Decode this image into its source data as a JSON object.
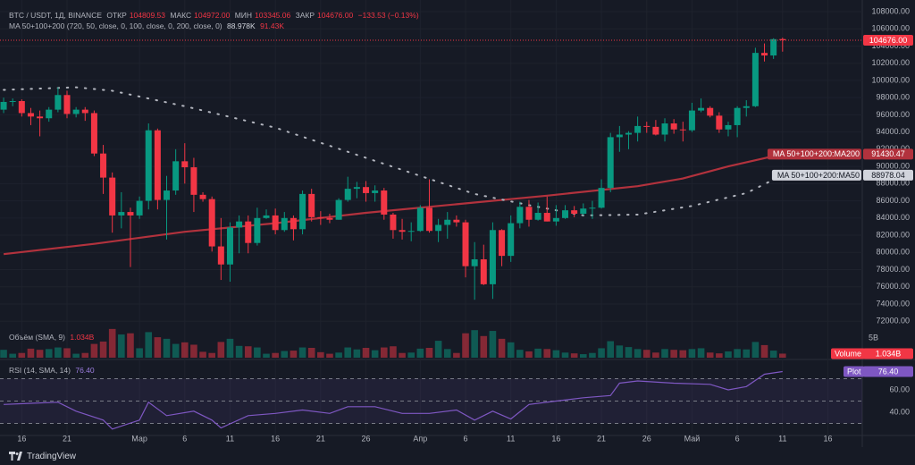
{
  "legend": {
    "symbol": "BTC / USDT, 1Д, BINANCE",
    "open_label": "ОТКР",
    "open": "104809.53",
    "high_label": "МАКС",
    "high": "104972.00",
    "low_label": "МИН",
    "low": "103345.06",
    "close_label": "ЗАКР",
    "close": "104676.00",
    "change": "−133.53 (−0.13%)",
    "ma": "MA 50+100+200 (720, 50, close, 0, 100, close, 0, 200, close, 0)",
    "ma50": "88.978K",
    "ma200": "91.43K"
  },
  "footer": "TradingView",
  "chart_data": [
    {
      "type": "candlestick",
      "xlim": [
        -0.4,
        94.8
      ],
      "ylim": [
        71400,
        109350
      ],
      "xticks": [
        {
          "value": 2,
          "label": "16"
        },
        {
          "value": 7,
          "label": "21"
        },
        {
          "value": 15,
          "label": "Мар"
        },
        {
          "value": 20,
          "label": "6"
        },
        {
          "value": 25,
          "label": "11"
        },
        {
          "value": 30,
          "label": "16"
        },
        {
          "value": 35,
          "label": "21"
        },
        {
          "value": 40,
          "label": "26"
        },
        {
          "value": 46,
          "label": "Апр"
        },
        {
          "value": 51,
          "label": "6"
        },
        {
          "value": 56,
          "label": "11"
        },
        {
          "value": 61,
          "label": "16"
        },
        {
          "value": 66,
          "label": "21"
        },
        {
          "value": 71,
          "label": "26"
        },
        {
          "value": 76,
          "label": "Май"
        },
        {
          "value": 81,
          "label": "6"
        },
        {
          "value": 86,
          "label": "11"
        },
        {
          "value": 91,
          "label": "16"
        }
      ],
      "yticks": [
        {
          "value": 72000,
          "label": "72000.00"
        },
        {
          "value": 74000,
          "label": "74000.00"
        },
        {
          "value": 76000,
          "label": "76000.00"
        },
        {
          "value": 78000,
          "label": "78000.00"
        },
        {
          "value": 80000,
          "label": "80000.00"
        },
        {
          "value": 82000,
          "label": "82000.00"
        },
        {
          "value": 84000,
          "label": "84000.00"
        },
        {
          "value": 86000,
          "label": "86000.00"
        },
        {
          "value": 88000,
          "label": "88000.00"
        },
        {
          "value": 90000,
          "label": "90000.00"
        },
        {
          "value": 92000,
          "label": "92000.00"
        },
        {
          "value": 94000,
          "label": "94000.00"
        },
        {
          "value": 96000,
          "label": "96000.00"
        },
        {
          "value": 98000,
          "label": "98000.00"
        },
        {
          "value": 100000,
          "label": "100000.00"
        },
        {
          "value": 102000,
          "label": "102000.00"
        },
        {
          "value": 104000,
          "label": "104000.00"
        },
        {
          "value": 106000,
          "label": "106000.00"
        },
        {
          "value": 108000,
          "label": "108000.00"
        }
      ],
      "grid": true,
      "up_color": "#089981",
      "down_color": "#f23645",
      "ohlc": [
        [
          96600,
          98000,
          96200,
          97500
        ],
        [
          97500,
          97900,
          97000,
          97600
        ],
        [
          97600,
          97800,
          95800,
          96200
        ],
        [
          96200,
          96800,
          94800,
          95800
        ],
        [
          95800,
          96500,
          93500,
          95600
        ],
        [
          95600,
          96900,
          95200,
          96600
        ],
        [
          96600,
          99200,
          96300,
          98300
        ],
        [
          98300,
          98800,
          95600,
          96100
        ],
        [
          96100,
          96900,
          95700,
          96600
        ],
        [
          96600,
          96900,
          95300,
          96200
        ],
        [
          96200,
          96500,
          91200,
          91500
        ],
        [
          91500,
          92500,
          86800,
          88700
        ],
        [
          88700,
          89300,
          82300,
          84300
        ],
        [
          84300,
          87000,
          82800,
          84700
        ],
        [
          84700,
          85200,
          78300,
          84300
        ],
        [
          84300,
          86500,
          83900,
          86000
        ],
        [
          86000,
          95000,
          85000,
          94200
        ],
        [
          94200,
          94400,
          85000,
          86100
        ],
        [
          86100,
          88900,
          81500,
          87200
        ],
        [
          87200,
          92000,
          86700,
          90600
        ],
        [
          90600,
          92700,
          88000,
          89900
        ],
        [
          89900,
          91000,
          84700,
          86700
        ],
        [
          86700,
          87000,
          85900,
          86200
        ],
        [
          86200,
          86500,
          80100,
          80700
        ],
        [
          80700,
          84000,
          76800,
          78600
        ],
        [
          78600,
          83500,
          76600,
          82900
        ],
        [
          82900,
          84300,
          79900,
          83600
        ],
        [
          83600,
          84300,
          79900,
          81100
        ],
        [
          81100,
          85200,
          80800,
          84000
        ],
        [
          84000,
          85000,
          83900,
          84300
        ],
        [
          84300,
          85100,
          82100,
          82600
        ],
        [
          82600,
          84700,
          82400,
          84000
        ],
        [
          84000,
          84300,
          81400,
          82700
        ],
        [
          82700,
          87200,
          82100,
          86800
        ],
        [
          86800,
          87400,
          83600,
          84100
        ],
        [
          84100,
          84800,
          83200,
          84000
        ],
        [
          84000,
          84500,
          83400,
          83800
        ],
        [
          83800,
          86300,
          83800,
          86100
        ],
        [
          86100,
          88800,
          85900,
          87400
        ],
        [
          87400,
          88200,
          86300,
          87600
        ],
        [
          87600,
          88300,
          85900,
          86900
        ],
        [
          86900,
          87800,
          85900,
          87200
        ],
        [
          87200,
          87500,
          83800,
          84400
        ],
        [
          84400,
          84600,
          81600,
          82600
        ],
        [
          82600,
          83900,
          81500,
          82400
        ],
        [
          82400,
          83500,
          81300,
          82500
        ],
        [
          82500,
          85500,
          82400,
          85200
        ],
        [
          85200,
          88500,
          82300,
          82500
        ],
        [
          82500,
          83900,
          81200,
          83200
        ],
        [
          83200,
          84700,
          81600,
          83800
        ],
        [
          83800,
          84300,
          83000,
          83500
        ],
        [
          83500,
          83800,
          77100,
          78400
        ],
        [
          78400,
          81200,
          74500,
          79200
        ],
        [
          79200,
          80900,
          76200,
          76300
        ],
        [
          76300,
          83500,
          74600,
          82600
        ],
        [
          82600,
          82700,
          78400,
          79600
        ],
        [
          79600,
          84300,
          78900,
          83400
        ],
        [
          83400,
          85900,
          82800,
          85300
        ],
        [
          85300,
          86100,
          83000,
          83800
        ],
        [
          83800,
          85800,
          83700,
          84600
        ],
        [
          84600,
          86500,
          83600,
          83600
        ],
        [
          83600,
          85500,
          83100,
          84000
        ],
        [
          84000,
          85500,
          83900,
          84900
        ],
        [
          84900,
          85400,
          84100,
          84500
        ],
        [
          84500,
          85700,
          84300,
          85100
        ],
        [
          85100,
          86000,
          83900,
          85200
        ],
        [
          85200,
          88500,
          85100,
          87500
        ],
        [
          87500,
          93900,
          87000,
          93400
        ],
        [
          93400,
          94700,
          91700,
          93700
        ],
        [
          93700,
          94100,
          92000,
          93900
        ],
        [
          93900,
          95800,
          92900,
          94700
        ],
        [
          94700,
          95200,
          93900,
          94600
        ],
        [
          94600,
          95400,
          93600,
          93700
        ],
        [
          93700,
          95600,
          92900,
          95000
        ],
        [
          95000,
          95500,
          93800,
          94300
        ],
        [
          94300,
          95200,
          92900,
          94200
        ],
        [
          94200,
          97400,
          94000,
          96500
        ],
        [
          96500,
          97900,
          96300,
          96800
        ],
        [
          96800,
          97000,
          95700,
          95900
        ],
        [
          95900,
          96300,
          93900,
          94300
        ],
        [
          94300,
          95200,
          93500,
          94800
        ],
        [
          94800,
          97000,
          93400,
          96800
        ],
        [
          96800,
          97700,
          95800,
          97000
        ],
        [
          97000,
          103800,
          96900,
          103200
        ],
        [
          103200,
          104300,
          102200,
          102900
        ],
        [
          102900,
          104900,
          102500,
          104800
        ],
        [
          104809.53,
          104972,
          103345.06,
          104676
        ]
      ],
      "last_price": {
        "value": 104676,
        "label": "104676.00"
      },
      "series": [
        {
          "name": "MA 50+100+200:MA200",
          "color": "#b2323d",
          "style": "solid",
          "x": [
            0,
            10,
            20,
            30,
            40,
            50,
            60,
            70,
            75,
            80,
            86
          ],
          "values": [
            79800,
            81000,
            82400,
            83400,
            84600,
            85600,
            86600,
            87700,
            88600,
            90000,
            91430.47
          ],
          "last_label": "91430.47"
        },
        {
          "name": "MA 50+100+200:MA50",
          "color": "#b2b5be",
          "style": "dotted",
          "x": [
            0,
            8,
            12,
            20,
            30,
            40,
            46,
            52,
            58,
            64,
            70,
            76,
            82,
            86
          ],
          "values": [
            98900,
            99200,
            98800,
            97000,
            94500,
            91000,
            88900,
            86800,
            85500,
            84300,
            84400,
            85400,
            86900,
            88978.04
          ],
          "last_label": "88978.04"
        }
      ]
    },
    {
      "type": "bar",
      "title": "Объём (SMA, 9)",
      "tag_name": "Volume",
      "last_label": "1.034B",
      "ylim": [
        0,
        7.95
      ],
      "yticks": [
        {
          "value": 5,
          "label": "5B"
        }
      ],
      "values": [
        2.0,
        1.0,
        1.2,
        2.3,
        2.0,
        2.2,
        2.6,
        2.4,
        1.0,
        1.2,
        3.5,
        4.1,
        7.3,
        5.9,
        6.2,
        2.4,
        6.5,
        5.2,
        4.8,
        3.5,
        3.9,
        3.3,
        1.5,
        1.2,
        4.0,
        4.8,
        3.0,
        2.9,
        2.6,
        1.0,
        1.2,
        1.7,
        1.8,
        2.6,
        2.5,
        1.4,
        1.0,
        1.3,
        2.6,
        2.1,
        2.5,
        1.9,
        2.6,
        2.9,
        1.2,
        1.3,
        2.3,
        2.5,
        4.3,
        2.2,
        1.2,
        6.2,
        7.0,
        5.5,
        6.8,
        4.8,
        3.9,
        2.0,
        1.6,
        2.3,
        2.2,
        1.9,
        1.3,
        1.1,
        0.9,
        1.2,
        2.4,
        4.2,
        3.1,
        2.7,
        2.2,
        2.0,
        1.3,
        2.2,
        2.0,
        1.9,
        2.2,
        2.4,
        1.3,
        1.1,
        1.6,
        2.2,
        2.1,
        4.0,
        3.2,
        1.8,
        1.034
      ]
    },
    {
      "type": "line",
      "title": "RSI (14, SMA, 14)",
      "tag_name": "Plot",
      "last_label": "76.40",
      "color": "#7e57c2",
      "ylim": [
        20.8,
        84.8
      ],
      "yticks": [
        {
          "value": 60,
          "label": "60.00"
        },
        {
          "value": 40,
          "label": "40.00"
        }
      ],
      "bands": [
        70,
        50,
        30
      ],
      "x": [
        0,
        3,
        6,
        8,
        11,
        12,
        15,
        16,
        18,
        21,
        23,
        24,
        27,
        30,
        33,
        36,
        38,
        41,
        44,
        47,
        50,
        52,
        54,
        56,
        58,
        61,
        64,
        67,
        68,
        70,
        74,
        78,
        80,
        82,
        84,
        86
      ],
      "values": [
        47,
        48,
        49,
        41,
        33,
        25,
        33,
        49,
        37,
        41,
        33,
        26,
        37,
        39,
        42,
        39,
        45,
        45,
        39,
        39,
        42,
        33,
        41,
        34,
        47,
        50,
        53,
        55,
        66,
        68,
        66,
        65,
        60,
        63,
        74,
        76.4
      ]
    }
  ]
}
